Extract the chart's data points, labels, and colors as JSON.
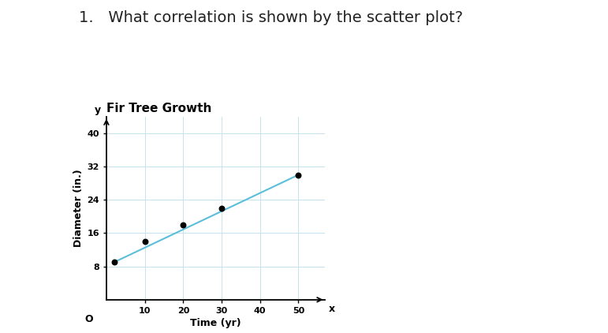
{
  "title": "Fir Tree Growth",
  "xlabel": "Time (yr)",
  "ylabel": "Diameter (in.)",
  "x_label_axis": "x",
  "y_label_axis": "y",
  "scatter_x": [
    2,
    10,
    20,
    30,
    50
  ],
  "scatter_y": [
    9,
    14,
    18,
    22,
    30
  ],
  "line_x": [
    2,
    50
  ],
  "line_y": [
    9,
    30
  ],
  "xlim": [
    0,
    57
  ],
  "ylim": [
    0,
    44
  ],
  "xticks": [
    10,
    20,
    30,
    40,
    50
  ],
  "yticks": [
    8,
    16,
    24,
    32,
    40
  ],
  "origin_label": "O",
  "dot_color": "#000000",
  "line_color": "#5bbfda",
  "grid_color": "#c5e4ef",
  "axis_color": "#000000",
  "title_fontsize": 11,
  "label_fontsize": 9,
  "tick_fontsize": 8,
  "background_color": "#ffffff",
  "question_text": "1.   What correlation is shown by the scatter plot?",
  "question_fontsize": 14
}
